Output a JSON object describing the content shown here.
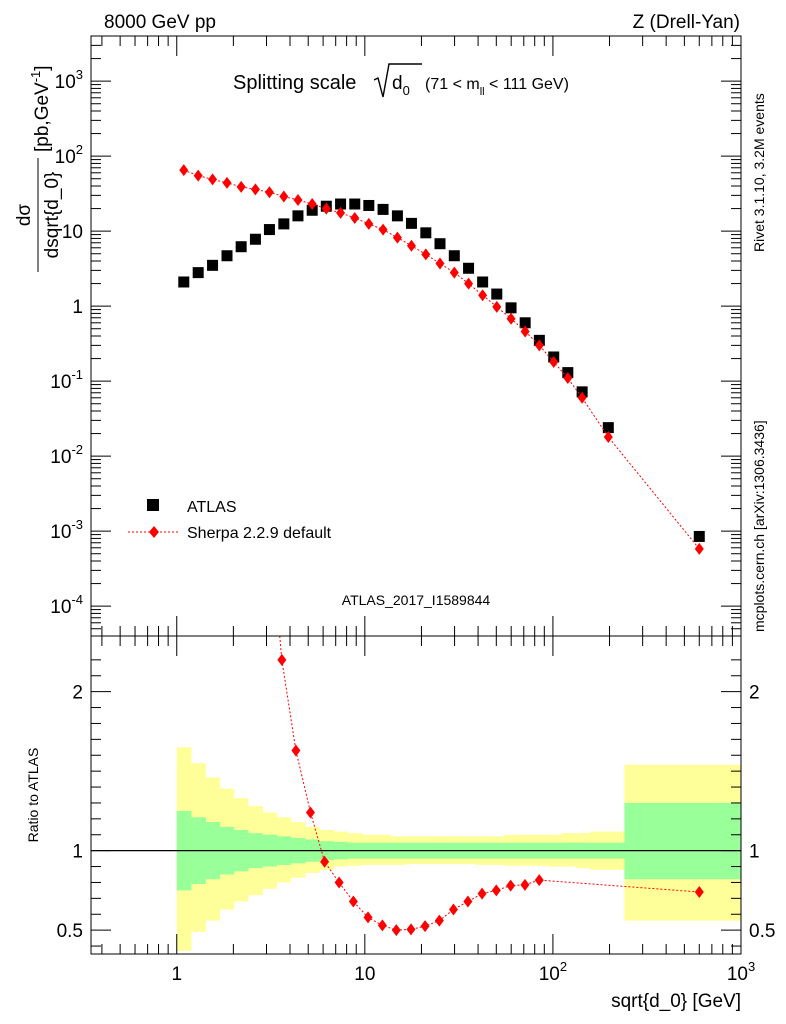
{
  "header": {
    "left": "8000 GeV pp",
    "right": "Z (Drell-Yan)"
  },
  "side_labels": {
    "rivet": "Rivet 3.1.10,  3.2M events",
    "mcplots": "mcplots.cern.ch [arXiv:1306.3436]"
  },
  "colors": {
    "atlas": "#000000",
    "sherpa": "#ff0000",
    "band_inner": "#99ff99",
    "band_outer": "#ffff99",
    "watermark": "#a0a0a0"
  },
  "chart_data": [
    {
      "type": "scatter",
      "title": "Splitting scale",
      "title_symbol": "d",
      "title_symbol_sub": "0",
      "title_cut_pre": "(71 < m",
      "title_cut_sub": "ll",
      "title_cut_post": " < 111 GeV)",
      "ylabel_num": "dσ",
      "ylabel_den": "dsqrt{d_0}",
      "ylabel_units_pre": "[pb,GeV",
      "ylabel_units_sup": "-1",
      "ylabel_units_post": "]",
      "xlabel": "sqrt{d_0} [GeV]",
      "xscale": "log",
      "yscale": "log",
      "xlim": [
        0.35,
        1000
      ],
      "ylim": [
        4e-05,
        4000
      ],
      "watermark": "ATLAS_2017_I1589844",
      "y_tick_labels": [
        {
          "base": "10",
          "exp": "-4",
          "v": 0.0001
        },
        {
          "base": "10",
          "exp": "-3",
          "v": 0.001
        },
        {
          "base": "10",
          "exp": "-2",
          "v": 0.01
        },
        {
          "base": "10",
          "exp": "-1",
          "v": 0.1
        },
        {
          "base": "1",
          "exp": "",
          "v": 1
        },
        {
          "base": "10",
          "exp": "",
          "v": 10
        },
        {
          "base": "10",
          "exp": "2",
          "v": 100
        },
        {
          "base": "10",
          "exp": "3",
          "v": 1000
        }
      ],
      "legend": [
        {
          "label": "ATLAS",
          "marker": "square"
        },
        {
          "label": "Sherpa 2.2.9 default",
          "marker": "diamond"
        }
      ],
      "series": [
        {
          "name": "ATLAS",
          "x": [
            1.09,
            1.3,
            1.55,
            1.85,
            2.2,
            2.62,
            3.11,
            3.71,
            4.41,
            5.25,
            6.24,
            7.43,
            8.84,
            10.5,
            12.5,
            14.9,
            17.7,
            21.1,
            25.1,
            29.9,
            35.6,
            42.3,
            50.3,
            59.9,
            71.2,
            84.7,
            101,
            120,
            143,
            197,
            600
          ],
          "y": [
            2.1,
            2.8,
            3.5,
            4.7,
            6.2,
            7.8,
            10.5,
            12.5,
            16,
            19,
            21.5,
            23,
            23,
            22,
            19.5,
            16,
            12.7,
            9.5,
            6.8,
            4.7,
            3.2,
            2.1,
            1.45,
            0.95,
            0.6,
            0.35,
            0.21,
            0.13,
            0.072,
            0.024,
            0.00085
          ]
        },
        {
          "name": "Sherpa 2.2.9 default",
          "x": [
            1.09,
            1.3,
            1.55,
            1.85,
            2.2,
            2.62,
            3.11,
            3.71,
            4.41,
            5.25,
            6.24,
            7.43,
            8.84,
            10.5,
            12.5,
            14.9,
            17.7,
            21.1,
            25.1,
            29.9,
            35.6,
            42.3,
            50.3,
            59.9,
            71.2,
            84.7,
            101,
            120,
            143,
            197,
            600
          ],
          "y": [
            65,
            55,
            49,
            44,
            39,
            36,
            33,
            29,
            26,
            23,
            20,
            17.5,
            15,
            12.5,
            10.5,
            8.2,
            6.4,
            4.9,
            3.7,
            2.8,
            2.0,
            1.4,
            0.98,
            0.68,
            0.46,
            0.3,
            0.18,
            0.11,
            0.06,
            0.018,
            0.00058
          ]
        }
      ]
    },
    {
      "type": "scatter",
      "ylabel": "Ratio to ATLAS",
      "xlabel": "sqrt{d_0} [GeV]",
      "xscale": "log",
      "xlim": [
        0.35,
        1000
      ],
      "ylim": [
        0.35,
        2.35
      ],
      "y_ticks": [
        0.5,
        1,
        2
      ],
      "y_tick_labels": [
        "0.5",
        "1",
        "2"
      ],
      "x_tick_labels": [
        {
          "base": "1",
          "exp": "",
          "v": 1
        },
        {
          "base": "10",
          "exp": "",
          "v": 10
        },
        {
          "base": "10",
          "exp": "2",
          "v": 100
        },
        {
          "base": "10",
          "exp": "3",
          "v": 1000
        }
      ],
      "reference_line": 1,
      "bands": {
        "edges": [
          1.0,
          1.19,
          1.42,
          1.69,
          2.01,
          2.39,
          2.85,
          3.39,
          4.04,
          4.81,
          5.72,
          6.81,
          8.11,
          9.65,
          11.5,
          13.7,
          16.3,
          19.4,
          23.1,
          27.5,
          32.7,
          38.9,
          46.3,
          55.1,
          65.6,
          78.1,
          93,
          111,
          132,
          157,
          240,
          1000
        ],
        "inner_lo": [
          0.75,
          0.79,
          0.82,
          0.85,
          0.87,
          0.89,
          0.9,
          0.91,
          0.92,
          0.93,
          0.94,
          0.945,
          0.95,
          0.95,
          0.95,
          0.95,
          0.95,
          0.95,
          0.95,
          0.95,
          0.95,
          0.95,
          0.95,
          0.95,
          0.95,
          0.95,
          0.95,
          0.95,
          0.95,
          0.95,
          0.82
        ],
        "inner_hi": [
          1.25,
          1.21,
          1.18,
          1.15,
          1.13,
          1.11,
          1.1,
          1.09,
          1.08,
          1.07,
          1.06,
          1.055,
          1.05,
          1.05,
          1.05,
          1.05,
          1.05,
          1.05,
          1.05,
          1.05,
          1.05,
          1.05,
          1.05,
          1.05,
          1.05,
          1.05,
          1.05,
          1.05,
          1.05,
          1.05,
          1.3
        ],
        "outer_lo": [
          0.37,
          0.49,
          0.56,
          0.63,
          0.68,
          0.72,
          0.76,
          0.8,
          0.83,
          0.86,
          0.88,
          0.9,
          0.905,
          0.91,
          0.91,
          0.91,
          0.915,
          0.915,
          0.915,
          0.915,
          0.915,
          0.91,
          0.91,
          0.905,
          0.905,
          0.905,
          0.9,
          0.9,
          0.89,
          0.88,
          0.56
        ],
        "outer_hi": [
          1.65,
          1.55,
          1.46,
          1.39,
          1.33,
          1.28,
          1.24,
          1.21,
          1.18,
          1.15,
          1.13,
          1.12,
          1.11,
          1.1,
          1.1,
          1.09,
          1.09,
          1.09,
          1.09,
          1.09,
          1.09,
          1.09,
          1.09,
          1.1,
          1.1,
          1.1,
          1.1,
          1.11,
          1.11,
          1.12,
          1.54
        ]
      },
      "series": [
        {
          "name": "Sherpa 2.2.9 default",
          "x": [
            3.62,
            4.3,
            5.14,
            6.11,
            7.3,
            8.69,
            10.4,
            12.4,
            14.7,
            17.6,
            20.9,
            24.9,
            29.6,
            35.3,
            42.0,
            50.0,
            59.6,
            71.0,
            84.6,
            600
          ],
          "y": [
            2.2,
            1.63,
            1.24,
            0.93,
            0.8,
            0.68,
            0.58,
            0.53,
            0.5,
            0.505,
            0.525,
            0.56,
            0.63,
            0.68,
            0.73,
            0.75,
            0.78,
            0.785,
            0.815,
            0.74
          ]
        }
      ]
    }
  ]
}
